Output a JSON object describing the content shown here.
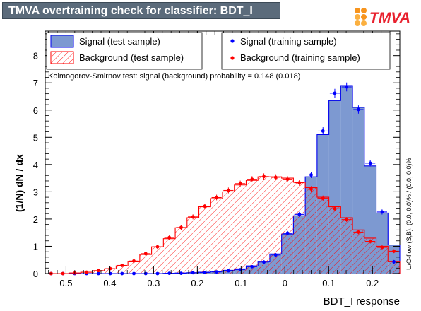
{
  "title": "TMVA overtraining check for classifier: BDT_I",
  "logo_text": "TMVA",
  "colors": {
    "title_bg": "#5b6b7b",
    "signal_fill": "#7d99d1",
    "signal_line": "#0000ee",
    "background_hatch": "#ff0000",
    "signal_marker": "#0000ff",
    "background_marker": "#ff0000"
  },
  "legend": {
    "signal_test": "Signal (test sample)",
    "background_test": "Background (test sample)",
    "signal_train": "Signal (training sample)",
    "background_train": "Background (training sample)"
  },
  "ks_text": "Kolmogorov-Smirnov test: signal (background) probability = 0.148 (0.018)",
  "overflow_text": "U/O-flow (S,B): (0.0, 0.0)% / (0.0, 0.0)%",
  "chart_data": {
    "type": "bar",
    "xlabel": "BDT_I response",
    "ylabel": "(1/N) dN / dx",
    "xlim": [
      -0.5475,
      0.2625
    ],
    "ylim": [
      0,
      8.9
    ],
    "x_ticks": [
      -0.5,
      -0.4,
      -0.3,
      -0.2,
      -0.1,
      0,
      0.1,
      0.2
    ],
    "x_tick_labels": [
      "0.5",
      "0.4",
      "0.3",
      "0.2",
      "0.1",
      "0",
      "0.1",
      "0.2"
    ],
    "y_ticks": [
      0,
      1,
      2,
      3,
      4,
      5,
      6,
      7,
      8
    ],
    "y_tick_labels": [
      "0",
      "1",
      "2",
      "3",
      "4",
      "5",
      "6",
      "7",
      "8"
    ],
    "bin_centers": [
      -0.534,
      -0.507,
      -0.48,
      -0.453,
      -0.426,
      -0.399,
      -0.372,
      -0.345,
      -0.318,
      -0.291,
      -0.264,
      -0.237,
      -0.21,
      -0.183,
      -0.156,
      -0.129,
      -0.102,
      -0.075,
      -0.048,
      -0.021,
      0.006,
      0.033,
      0.06,
      0.087,
      0.114,
      0.141,
      0.168,
      0.195,
      0.222,
      0.249
    ],
    "series": [
      {
        "name": "Signal (test sample)",
        "values": [
          0.0,
          0.0,
          0.0,
          0.0,
          0.0,
          0.0,
          0.0,
          0.0,
          0.0,
          0.0,
          0.01,
          0.02,
          0.03,
          0.05,
          0.08,
          0.12,
          0.17,
          0.28,
          0.45,
          0.72,
          1.45,
          2.12,
          3.55,
          5.1,
          6.35,
          6.9,
          6.1,
          3.95,
          2.22,
          1.05
        ]
      },
      {
        "name": "Background (test sample)",
        "values": [
          0.0,
          0.0,
          0.02,
          0.05,
          0.1,
          0.17,
          0.28,
          0.45,
          0.7,
          0.98,
          1.28,
          1.68,
          2.05,
          2.45,
          2.75,
          3.0,
          3.25,
          3.42,
          3.55,
          3.55,
          3.5,
          3.35,
          3.15,
          2.8,
          2.45,
          2.05,
          1.6,
          1.3,
          1.0,
          0.45
        ]
      },
      {
        "name": "Signal (training sample)",
        "values": [
          0.0,
          0.0,
          0.0,
          0.0,
          0.0,
          0.0,
          0.0,
          0.0,
          0.0,
          0.0,
          0.01,
          0.01,
          0.03,
          0.04,
          0.06,
          0.1,
          0.14,
          0.25,
          0.42,
          0.68,
          1.48,
          2.17,
          3.62,
          5.23,
          6.62,
          6.85,
          6.02,
          4.05,
          2.26,
          0.43
        ]
      },
      {
        "name": "Background (training sample)",
        "values": [
          0.0,
          0.0,
          0.02,
          0.05,
          0.11,
          0.18,
          0.3,
          0.46,
          0.73,
          0.98,
          1.32,
          1.69,
          2.08,
          2.47,
          2.79,
          3.05,
          3.3,
          3.46,
          3.56,
          3.53,
          3.46,
          3.33,
          3.1,
          2.76,
          2.38,
          1.98,
          1.52,
          1.18,
          0.96,
          0.82
        ]
      }
    ]
  }
}
